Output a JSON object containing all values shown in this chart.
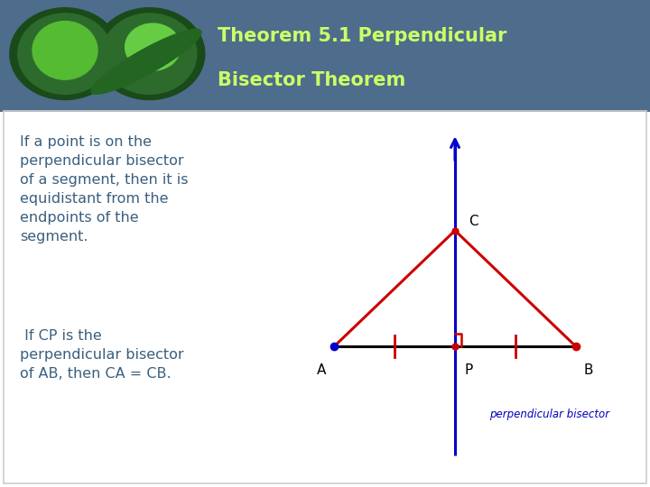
{
  "title_line1": "Theorem 5.1 Perpendicular",
  "title_line2": "Bisector Theorem",
  "title_color": "#ccff66",
  "header_bg_color": "#4e6d8c",
  "body_bg_color": "#ffffff",
  "border_color": "#bbbbbb",
  "text_color": "#3a5f7f",
  "theorem_text": "If a point is on the\nperpendicular bisector\nof a segment, then it is\nequidistant from the\nendpoints of the\nsegment.",
  "if_text": " If CP is the\nperpendicular bisector\nof AB, then CA = CB.",
  "diagram": {
    "A": [
      -1.0,
      0.0
    ],
    "B": [
      1.0,
      0.0
    ],
    "P": [
      0.0,
      0.0
    ],
    "C": [
      0.0,
      0.48
    ],
    "line_color_AB": "#000000",
    "line_color_triangle": "#cc0000",
    "line_color_bisector": "#0000cc",
    "dot_color_blue": "#0000cc",
    "dot_color_red": "#cc0000",
    "label_color": "#000000",
    "perp_label_color": "#0000bb",
    "tick_color": "#cc0000",
    "right_angle_color": "#cc0000"
  }
}
